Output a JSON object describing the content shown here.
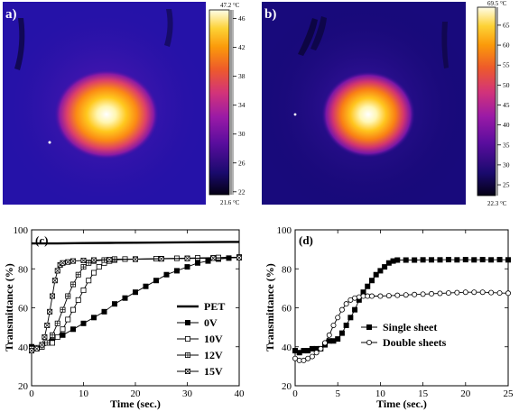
{
  "chart_data": [
    {
      "type": "heatmap",
      "panel_label": "a)",
      "colorbar": {
        "min_label": "21.6 °C",
        "max_label": "47.2 °C",
        "ticks": [
          22,
          26,
          30,
          34,
          38,
          42,
          46
        ],
        "range": [
          21.6,
          47.2
        ]
      }
    },
    {
      "type": "heatmap",
      "panel_label": "b)",
      "colorbar": {
        "min_label": "22.3 °C",
        "max_label": "69.5 °C",
        "ticks": [
          25,
          30,
          35,
          40,
          45,
          50,
          55,
          60,
          65
        ],
        "range": [
          22.3,
          69.5
        ]
      }
    },
    {
      "type": "line",
      "panel_label": "(c)",
      "xlabel": "Time (sec.)",
      "ylabel": "Transmittance (%)",
      "xlim": [
        0,
        40
      ],
      "ylim": [
        20,
        100
      ],
      "xticks": [
        0,
        10,
        20,
        30,
        40
      ],
      "yticks": [
        20,
        40,
        60,
        80,
        100
      ],
      "legend_position": "bottom-right",
      "series": [
        {
          "name": "PET",
          "marker": "none",
          "x": [
            0,
            5,
            10,
            15,
            20,
            25,
            30,
            35,
            40
          ],
          "y": [
            93,
            93,
            93.2,
            93.3,
            93.4,
            93.5,
            93.6,
            93.7,
            93.8
          ]
        },
        {
          "name": "0V",
          "marker": "filled-square",
          "x": [
            0,
            2,
            4,
            6,
            8,
            10,
            12,
            14,
            16,
            18,
            20,
            22,
            24,
            26,
            28,
            30,
            32,
            34,
            36,
            38,
            40
          ],
          "y": [
            40,
            41,
            43,
            46,
            49,
            52,
            55,
            58,
            62,
            65,
            68,
            71,
            74,
            77,
            79,
            81,
            83,
            84,
            85,
            85.5,
            86
          ]
        },
        {
          "name": "10V",
          "marker": "open-square",
          "x": [
            0,
            2,
            4,
            5,
            6,
            7,
            8,
            9,
            10,
            11,
            12,
            13,
            14,
            15,
            16,
            18,
            20,
            24,
            28,
            32,
            36,
            40
          ],
          "y": [
            39,
            40,
            42,
            45,
            49,
            54,
            59,
            64,
            69,
            74,
            78,
            81,
            83,
            84,
            84.5,
            85,
            85,
            85.2,
            85.4,
            85.6,
            85.8,
            86
          ]
        },
        {
          "name": "12V",
          "marker": "plus-square",
          "x": [
            0,
            1,
            2,
            3,
            4,
            5,
            6,
            7,
            8,
            9,
            10,
            11,
            12,
            14,
            16,
            20,
            25,
            30,
            35,
            40
          ],
          "y": [
            39,
            39.5,
            40,
            42,
            46,
            52,
            59,
            66,
            72,
            77,
            81,
            83,
            84,
            84.5,
            85,
            85,
            85.2,
            85.4,
            85.6,
            85.8
          ]
        },
        {
          "name": "15V",
          "marker": "cross-square",
          "x": [
            0,
            1,
            2,
            2.5,
            3,
            3.5,
            4,
            4.5,
            5,
            5.5,
            6,
            7,
            8,
            10,
            12,
            15,
            20,
            25,
            30,
            35,
            40
          ],
          "y": [
            38,
            39,
            41,
            45,
            51,
            58,
            66,
            74,
            79,
            82,
            83,
            83.5,
            84,
            84.3,
            84.5,
            84.7,
            84.9,
            85.1,
            85.3,
            85.5,
            85.7
          ]
        }
      ]
    },
    {
      "type": "line",
      "panel_label": "(d)",
      "xlabel": "Time (sec.)",
      "ylabel": "Transmittance (%)",
      "xlim": [
        0,
        25
      ],
      "ylim": [
        20,
        100
      ],
      "xticks": [
        0,
        5,
        10,
        15,
        20,
        25
      ],
      "yticks": [
        20,
        40,
        60,
        80,
        100
      ],
      "legend_position": "center-right",
      "series": [
        {
          "name": "Single sheet",
          "marker": "filled-square",
          "x": [
            0,
            0.5,
            1,
            1.5,
            2,
            2.5,
            3,
            3.5,
            4,
            4.5,
            5,
            5.5,
            6,
            6.5,
            7,
            7.5,
            8,
            8.5,
            9,
            9.5,
            10,
            10.5,
            11,
            11.5,
            12,
            13,
            14,
            15,
            16,
            17,
            18,
            19,
            20,
            21,
            22,
            23,
            24,
            25
          ],
          "y": [
            38,
            37,
            38,
            38,
            39,
            39,
            39,
            41,
            43,
            43,
            44,
            47,
            51,
            55,
            59,
            64,
            68,
            71,
            74,
            77,
            79,
            81,
            83,
            84,
            84.5,
            84.5,
            84.5,
            84.6,
            84.6,
            84.6,
            84.7,
            84.6,
            84.7,
            84.6,
            84.7,
            84.6,
            84.7,
            84.6
          ]
        },
        {
          "name": "Double sheets",
          "marker": "open-circle",
          "x": [
            0,
            0.5,
            1,
            1.5,
            2,
            2.5,
            3,
            3.5,
            4,
            4.5,
            5,
            5.5,
            6,
            6.5,
            7,
            7.5,
            8,
            8.5,
            9,
            10,
            11,
            12,
            13,
            14,
            15,
            16,
            17,
            18,
            19,
            20,
            21,
            22,
            23,
            24,
            25
          ],
          "y": [
            34,
            33,
            33,
            34,
            35,
            37,
            39,
            42,
            46,
            51,
            55,
            59,
            62,
            64,
            65,
            65.5,
            66,
            66,
            66,
            66,
            66.2,
            66.4,
            66.6,
            66.8,
            67,
            67.2,
            67.4,
            67.6,
            67.8,
            68,
            68,
            68,
            67.8,
            67.6,
            67.5
          ]
        }
      ]
    }
  ]
}
